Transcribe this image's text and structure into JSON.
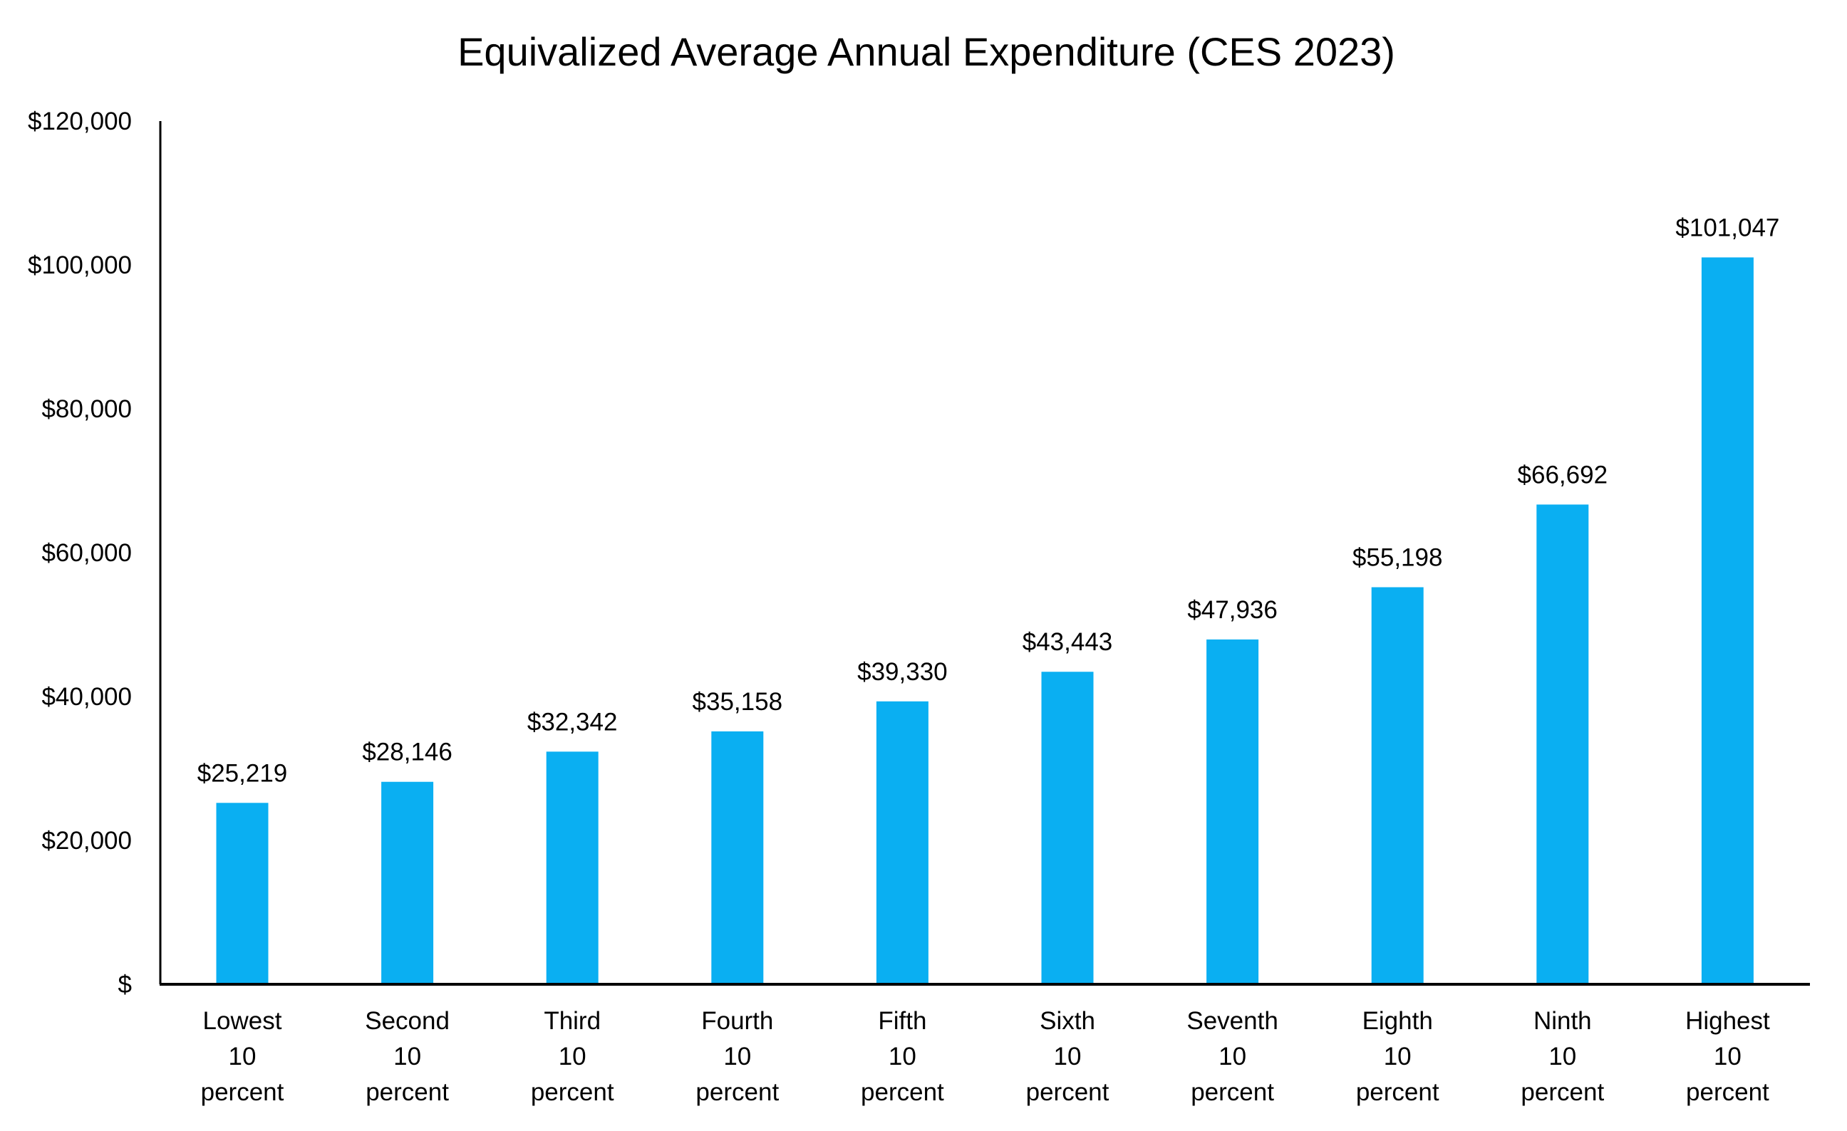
{
  "chart_data": {
    "type": "bar",
    "title": "Equivalized Average Annual Expenditure (CES 2023)",
    "xlabel": "",
    "ylabel": "",
    "ylim": [
      0,
      120000
    ],
    "grid": false,
    "legend": "none",
    "bar_color": "#0AAFF2",
    "yticks": [
      0,
      20000,
      40000,
      60000,
      80000,
      100000,
      120000
    ],
    "ytick_labels": [
      "$",
      "$20,000",
      "$40,000",
      "$60,000",
      "$80,000",
      "$100,000",
      "$120,000"
    ],
    "categories": [
      [
        "Lowest",
        "10",
        "percent"
      ],
      [
        "Second",
        "10",
        "percent"
      ],
      [
        "Third",
        "10",
        "percent"
      ],
      [
        "Fourth",
        "10",
        "percent"
      ],
      [
        "Fifth",
        "10",
        "percent"
      ],
      [
        "Sixth",
        "10",
        "percent"
      ],
      [
        "Seventh",
        "10",
        "percent"
      ],
      [
        "Eighth",
        "10",
        "percent"
      ],
      [
        "Ninth",
        "10",
        "percent"
      ],
      [
        "Highest",
        "10",
        "percent"
      ]
    ],
    "values": [
      25219,
      28146,
      32342,
      35158,
      39330,
      43443,
      47936,
      55198,
      66692,
      101047
    ],
    "data_labels": [
      "$25,219",
      "$28,146",
      "$32,342",
      "$35,158",
      "$39,330",
      "$43,443",
      "$47,936",
      "$55,198",
      "$66,692",
      "$101,047"
    ]
  }
}
